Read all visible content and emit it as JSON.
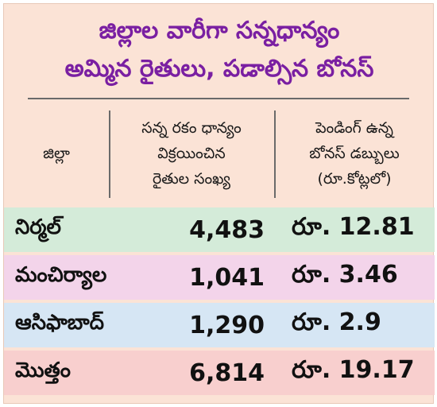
{
  "title": {
    "line1": "జిల్లాల వారీగా సన్నధాన్యం",
    "line2": "అమ్మిన రైతులు, పడాల్సిన బోనస్"
  },
  "columns": {
    "district": [
      "జిల్లా"
    ],
    "farmers": [
      "సన్న రకం ధాన్యం",
      "విక్రయించిన",
      "రైతుల సంఖ్య"
    ],
    "bonus": [
      "పెండింగ్ ఉన్న",
      "బోనస్ డబ్బులు",
      "(రూ.కోట్లలో)"
    ]
  },
  "rows": [
    {
      "district": "నిర్మల్",
      "farmers": "4,483",
      "bonus": "రూ. 12.81"
    },
    {
      "district": "మంచిర్యాల",
      "farmers": "1,041",
      "bonus": "రూ. 3.46"
    },
    {
      "district": "ఆసిఫాబాద్",
      "farmers": "1,290",
      "bonus": "రూ. 2.9"
    },
    {
      "district": "మొత్తం",
      "farmers": "6,814",
      "bonus": "రూ. 19.17"
    }
  ],
  "colors": {
    "background": "#fbe3d6",
    "title": "#7a1fa2",
    "row1": "#d4ebd9",
    "row2": "#f3d4ea",
    "row3": "#d6e6f4",
    "row4": "#f8cfce"
  }
}
